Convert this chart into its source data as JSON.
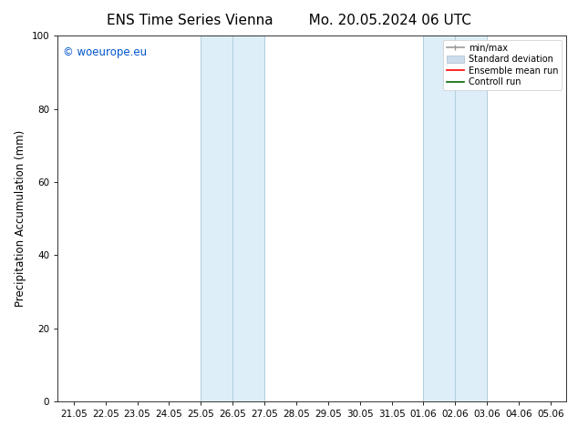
{
  "title_left": "ENS Time Series Vienna",
  "title_right": "Mo. 20.05.2024 06 UTC",
  "ylabel": "Precipitation Accumulation (mm)",
  "ylim": [
    0,
    100
  ],
  "yticks": [
    0,
    20,
    40,
    60,
    80,
    100
  ],
  "x_tick_labels": [
    "21.05",
    "22.05",
    "23.05",
    "24.05",
    "25.05",
    "26.05",
    "27.05",
    "28.05",
    "29.05",
    "30.05",
    "31.05",
    "01.06",
    "02.06",
    "03.06",
    "04.06",
    "05.06"
  ],
  "x_tick_positions": [
    0,
    1,
    2,
    3,
    4,
    5,
    6,
    7,
    8,
    9,
    10,
    11,
    12,
    13,
    14,
    15
  ],
  "shaded_bands": [
    {
      "x_start": 4,
      "x_end": 6,
      "color": "#ddeef8"
    },
    {
      "x_start": 11,
      "x_end": 13,
      "color": "#ddeef8"
    }
  ],
  "band_inner_lines": [
    {
      "x": 5,
      "band_idx": 0
    },
    {
      "x": 12,
      "band_idx": 1
    }
  ],
  "copyright_text": "© woeurope.eu",
  "copyright_color": "#0055cc",
  "legend_entries": [
    {
      "label": "min/max",
      "color": "#999999",
      "lw": 1.2
    },
    {
      "label": "Standard deviation",
      "color": "#ccddee",
      "lw": 8
    },
    {
      "label": "Ensemble mean run",
      "color": "#ff0000",
      "lw": 1.2
    },
    {
      "label": "Controll run",
      "color": "#006600",
      "lw": 1.2
    }
  ],
  "bg_color": "#ffffff",
  "plot_bg_color": "#ffffff",
  "band_edge_color": "#b0ccdd",
  "band_inner_color": "#b0ccdd",
  "title_fontsize": 11,
  "tick_fontsize": 7.5,
  "ylabel_fontsize": 8.5,
  "copyright_fontsize": 8.5
}
